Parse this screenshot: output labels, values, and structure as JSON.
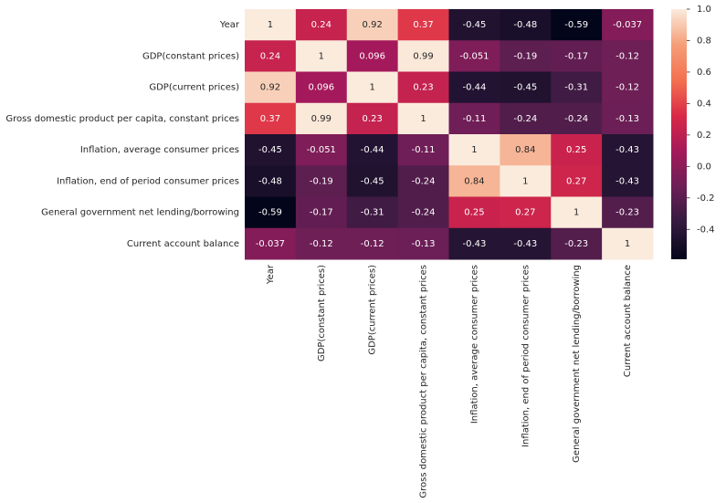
{
  "chart_data": {
    "type": "heatmap",
    "x": [
      "Year",
      "GDP(constant prices)",
      "GDP(current prices)",
      "Gross domestic product per capita, constant prices",
      "Inflation, average consumer prices",
      "Inflation, end of period consumer prices",
      "General government net lending/borrowing",
      "Current account balance"
    ],
    "y": [
      "Year",
      "GDP(constant prices)",
      "GDP(current prices)",
      "Gross domestic product per capita, constant prices",
      "Inflation, average consumer prices",
      "Inflation, end of period consumer prices",
      "General government net lending/borrowing",
      "Current account balance"
    ],
    "values": [
      [
        1,
        0.24,
        0.92,
        0.37,
        -0.45,
        -0.48,
        -0.59,
        -0.037
      ],
      [
        0.24,
        1,
        0.096,
        0.99,
        -0.051,
        -0.19,
        -0.17,
        -0.12
      ],
      [
        0.92,
        0.096,
        1,
        0.23,
        -0.44,
        -0.45,
        -0.31,
        -0.12
      ],
      [
        0.37,
        0.99,
        0.23,
        1,
        -0.11,
        -0.24,
        -0.24,
        -0.13
      ],
      [
        -0.45,
        -0.051,
        -0.44,
        -0.11,
        1,
        0.84,
        0.25,
        -0.43
      ],
      [
        -0.48,
        -0.19,
        -0.45,
        -0.24,
        0.84,
        1,
        0.27,
        -0.43
      ],
      [
        -0.59,
        -0.17,
        -0.31,
        -0.24,
        0.25,
        0.27,
        1,
        -0.23
      ],
      [
        -0.037,
        -0.12,
        -0.12,
        -0.13,
        -0.43,
        -0.43,
        -0.23,
        1
      ]
    ],
    "clim": [
      -0.59,
      1
    ],
    "cticks": [
      -0.4,
      -0.2,
      {
        "value": 0,
        "label": "0.0"
      },
      0.2,
      0.4,
      0.6,
      0.8,
      {
        "value": 1,
        "label": "1.0"
      }
    ],
    "colorscale": [
      "#03051a",
      "#331a3e",
      "#6a1f56",
      "#a3195b",
      "#d92847",
      "#f3704f",
      "#f59e78",
      "#faebdd"
    ]
  }
}
